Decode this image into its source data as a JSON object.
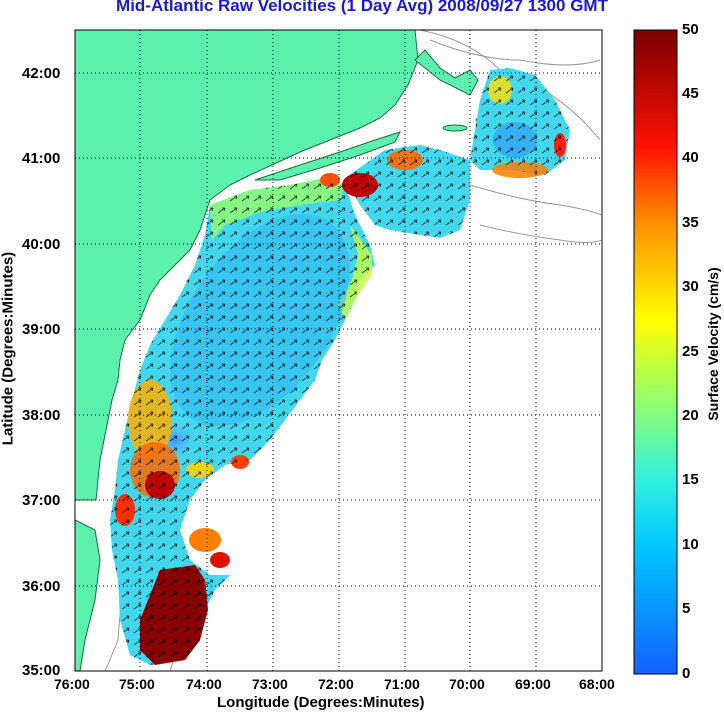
{
  "title": "Mid-Atlantic Raw Velocities (1 Day Avg) 2008/09/27 1300 GMT",
  "xlabel": "Longitude (Degrees:Minutes)",
  "ylabel": "Latitude (Degrees:Minutes)",
  "colorbar_label": "Surface Velocity (cm/s)",
  "x_ticks": [
    "76:00",
    "75:00",
    "74:00",
    "73:00",
    "72:00",
    "71:00",
    "70:00",
    "69:00",
    "68:00"
  ],
  "y_ticks": [
    "42:00",
    "41:00",
    "40:00",
    "39:00",
    "38:00",
    "37:00",
    "36:00",
    "35:00"
  ],
  "colorbar_ticks": [
    "50",
    "45",
    "40",
    "35",
    "30",
    "25",
    "20",
    "15",
    "10",
    "5",
    "0"
  ],
  "colors": {
    "title": "#1a1ad6",
    "land": "#5cf2ae",
    "low": "#1e78ff",
    "high": "#8a0000"
  }
}
